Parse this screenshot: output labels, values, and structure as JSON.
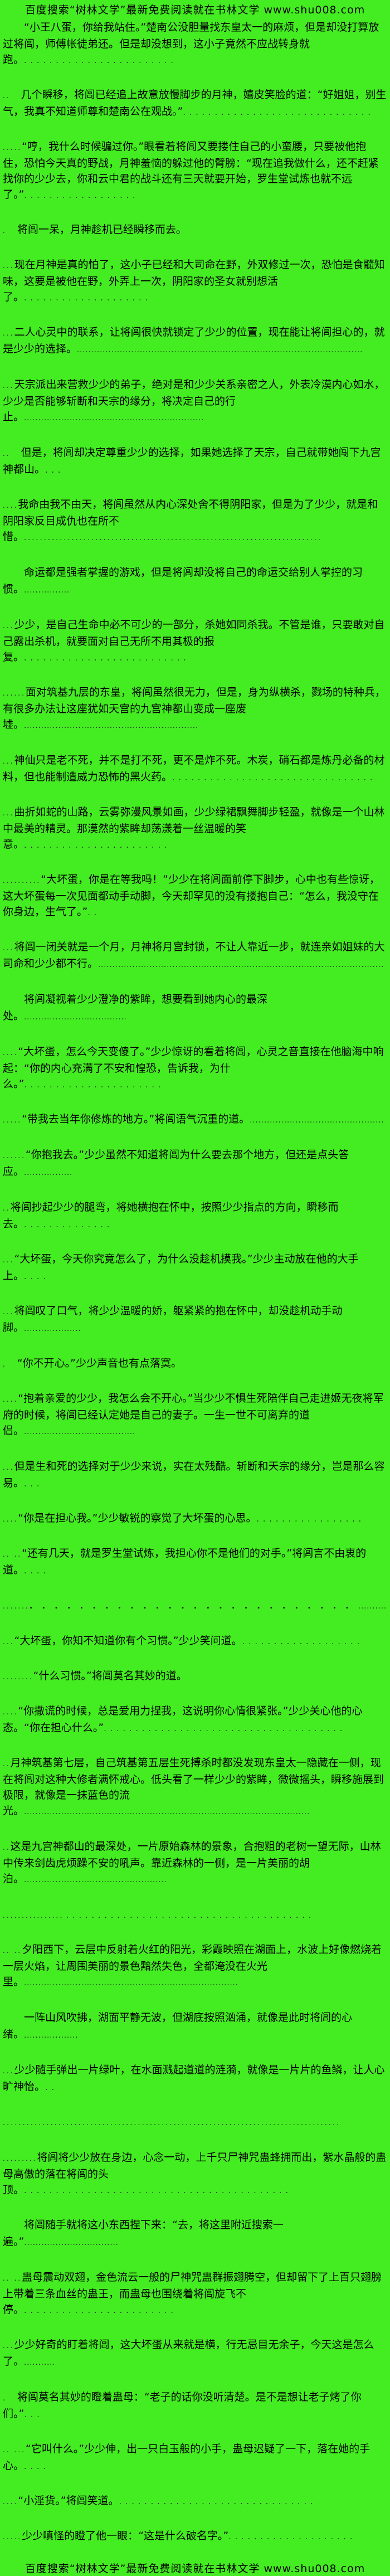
{
  "page": {
    "background_color": "#44ED21",
    "text_color": "#000000"
  },
  "banner": {
    "text": "百度搜索“树林文学”最新免费阅读就在书林文学 www.shu008.com",
    "site_name": "树林文学",
    "url": "www.shu008.com"
  },
  "paragraphs": [
    {
      "lead": "",
      "text": "　　“小王八蛋，你给我站住。”楚南公没胆量找东皇太一的麻烦，但是却没打算放过将闾，师傅帐徒弟还。但是却没想到，这小子竟然不应战转身就跑。",
      "trail_style": "sparse",
      "trail_n": 24
    },
    {
      "lead": "..",
      "text": "　几个瞬移，将闾已经追上故意放慢脚步的月神，嬉皮笑脸的道：“好姐姐，别生气，我真不知道师尊和楚南公在观战。”",
      "trail_style": "sparse",
      "trail_n": 30
    },
    {
      "lead": ".....",
      "text": "“哼，我什么时候骗过你。”眼看着将闾又要搂住自己的小蛮腰，只要被他抱住，恐怕今天真的野战，月神羞恼的躲过他的臂膀：“现在追我做什么，还不赶紧找你的少少去，你和云中君的战斗还有三天就要开始，罗生堂试炼也就不远了。”",
      "trail_style": "sparse",
      "trail_n": 18
    },
    {
      "lead": ".",
      "text": "　将闾一呆，月神趁机已经瞬移而去。",
      "trail_style": "sparse",
      "trail_n": 0
    },
    {
      "lead": "...",
      "text": "现在月神是真的怕了，这小子已经和大司命在野，外双修过一次，恐怕是食髓知味，这要是被他在野，外弄上一次，阴阳家的圣女就别想活了。",
      "trail_style": "sparse",
      "trail_n": 20
    },
    {
      "lead": "...",
      "text": "二人心灵中的联系，让将闾很快就锁定了少少的位置，现在能让将闾担心的，就是少少的选择。",
      "trail_style": "tight",
      "trail_n": 100
    },
    {
      "lead": "...",
      "text": "天宗派出来营救少少的弟子，绝对是和少少关系亲密之人，外表冷漠内心如水，少少是否能够斩断和天宗的缘分，将决定自己的行止。",
      "trail_style": "tight",
      "trail_n": 63
    },
    {
      "lead": "..",
      "text": "　但是，将闾却决定尊重少少的选择，如果她选择了天宗，自己就带她闯下九宫神都山。",
      "trail_style": "sparse",
      "trail_n": 3
    },
    {
      "lead": "....",
      "text": "我命由我不由天，将闾虽然从内心深处舍不得阴阳家，但是为了少少，就是和阴阳家反目成仇也在所不惜。",
      "trail_style": "mid",
      "trail_n": 75
    },
    {
      "lead": "",
      "text": "　　命运都是强者掌握的游戏，但是将闾却没将自己的命运交给别人掌控的习惯。",
      "trail_style": "tight",
      "trail_n": 16
    },
    {
      "lead": "...",
      "text": "少少，是自己生命中必不可少的一部分，杀她如同杀我。不管是谁，只要敢对自己露出杀机，就要面对自己无所不用其极的报复。",
      "trail_style": "sparse",
      "trail_n": 26
    },
    {
      "lead": "......",
      "text": "面对筑基九层的东皇，将闾虽然很无力，但是，身为纵横杀，戮场的特种兵，有很多办法让这座犹如天宫的九宫神都山变成一座废墟。",
      "trail_style": "tight",
      "trail_n": 61
    },
    {
      "lead": "...",
      "text": "神仙只是老不死，并不是打不死，更不是炸不死。木炭，硝石都是炼丹必备的材料，但也能制造威力恐怖的黑火药。",
      "trail_style": "sparse",
      "trail_n": 32
    },
    {
      "lead": "...",
      "text": "曲折如蛇的山路，云雾弥漫风景如画，少少绿裙飘舞脚步轻盈，就像是一个山林中最美的精灵。那漠然的紫眸却荡漾着一丝温暖的笑意。",
      "trail_style": "sparse",
      "trail_n": 23
    },
    {
      "lead": "..........",
      "text": "“大坏蛋，你是在等我吗！”少少在将闾面前停下脚步，心中也有些惊讶，这大坏蛋每一次见面都动手动脚，今天却罕见的没有搂抱自己：“怎么，我没守在你身边，生气了。”",
      "trail_style": "sparse",
      "trail_n": 2
    },
    {
      "lead": "...",
      "text": "将闾一闭关就是一个月，月神将月宫封锁，不让人靠近一步，就连亲如姐妹的大司命和少少都不行。",
      "trail_style": "tight",
      "trail_n": 100
    },
    {
      "lead": "",
      "text": "　　将闾凝视着少少澄净的紫眸，想要看到她内心的最深处。",
      "trail_style": "tight",
      "trail_n": 36
    },
    {
      "lead": "....",
      "text": "“大坏蛋，怎么今天变傻了。”少少惊讶的看着将闾，心灵之音直接在他脑海中响起：“你的内心充满了不安和惶恐，告诉我，为什么。”",
      "trail_style": "sparse",
      "trail_n": 22
    },
    {
      "lead": ".....",
      "text": "“带我去当年你修炼的地方。”将闾语气沉重的道。",
      "trail_style": "tight",
      "trail_n": 47
    },
    {
      "lead": "......",
      "text": "“你抱我去。”少少虽然不知道将闾为什么要去那个地方，但还是点头答应。",
      "trail_style": "tight",
      "trail_n": 17
    },
    {
      "lead": "..",
      "text": "将闾抄起少少的腿弯，将她横抱在怀中，按照少少指点的方向，瞬移而去。",
      "trail_style": "sparse",
      "trail_n": 14
    },
    {
      "lead": "...",
      "text": "“大坏蛋，今天你究竟怎么了，为什么没趁机摸我。”少少主动放在他的大手上。",
      "trail_style": "sparse",
      "trail_n": 4
    },
    {
      "lead": "...",
      "text": "将闾叹了口气，将少少温暖的娇，躯紧紧的抱在怀中，却没趁机动手动脚。",
      "trail_style": "tight",
      "trail_n": 20
    },
    {
      "lead": ".",
      "text": "　“你不开心。”少少声音也有点落寞。",
      "trail_style": "sparse",
      "trail_n": 0
    },
    {
      "lead": "....",
      "text": "“抱着亲爱的少少，我怎么会不开心。”当少少不惧生死陪伴自己走进姬无夜将军府的时候，将闾已经认定她是自己的妻子。一生一世不可离弃的道侣。",
      "trail_style": "tight",
      "trail_n": 39
    },
    {
      "lead": "...",
      "text": "但是生和死的选择对于少少来说，实在太残酷。斩断和天宗的缘分，岂是那么容易。",
      "trail_style": "sparse",
      "trail_n": 3
    },
    {
      "lead": "....",
      "text": "“你是在担心我。”少少敏锐的察觉了大坏蛋的心思。",
      "trail_style": "sparse",
      "trail_n": 17
    },
    {
      "lead": ".. ..",
      "text": "“还有几天，就是罗生堂试炼，我担心你不是他们的对手。”将闾言不由衷的道。",
      "trail_style": "sparse",
      "trail_n": 4
    },
    {
      "sep": true,
      "lead": ".......",
      "heavy_n": 26,
      "text": "",
      "trail_style": "tight",
      "trail_n": 40
    },
    {
      "lead": "...",
      "text": "“大坏蛋，你知不知道你有个习惯。”少少笑问道。",
      "trail_style": "sparse",
      "trail_n": 19
    },
    {
      "lead": "........",
      "text": "“什么习惯。”将闾莫名其妙的道。",
      "trail_style": "sparse",
      "trail_n": 0
    },
    {
      "lead": "....",
      "text": "“你撒谎的时候，总是爱用力捏我，这说明你心情很紧张。”少少关心他的心态。“你在担心什么。”",
      "trail_style": "sparse",
      "trail_n": 38
    },
    {
      "lead": "..",
      "text": "月神筑基第七层，自己筑基第五层生死搏杀时都没发现东皇太一隐藏在一侧，现在将闾对这种大修者满怀戒心。低头看了一样少少的紫眸，微微摇头，瞬移施展到极限，就像是一抹蓝色的流光。",
      "trail_style": "tight",
      "trail_n": 100
    },
    {
      "lead": "..",
      "text": "这是九宫神都山的最深处，一片原始森林的景象，合抱粗的老树一望无际，山林中传来剑齿虎烦躁不安的吼声。靠近森林的一侧，是一片美丽的胡泊。",
      "trail_style": "tight",
      "trail_n": 50
    },
    {
      "sep": true,
      "lead": "...............",
      "heavy_n": 0,
      "text": "",
      "trail_style": "sparse",
      "trail_n": 40
    },
    {
      "lead": ".. ..",
      "text": "夕阳西下，云层中反射着火红的阳光，彩霞映照在湖面上，水波上好像燃烧着一层火焰，让周围美丽的景色黯然失色，全都淹没在火光里。",
      "trail_style": "tight",
      "trail_n": 75
    },
    {
      "lead": "",
      "text": "　　一阵山风吹拂，湖面平静无波，但湖底按照汹涌，就像是此时将闾的心绪。",
      "trail_style": "tight",
      "trail_n": 19
    },
    {
      "lead": "...",
      "text": "少少随手弹出一片绿叶，在水面溅起道道的涟漪，就像是一片片的鱼鳞，让人心旷神怡。",
      "trail_style": "sparse",
      "trail_n": 2
    },
    {
      "sep": true,
      "lead": "",
      "heavy_n": 0,
      "text": "",
      "trail_style": "mid",
      "trail_n": 85
    },
    {
      "lead": ".........",
      "text": "将闾将少少放在身边，心念一动，上千只尸神咒蛊蜂拥而出，紫水晶般的蛊母高傲的落在将闾的头顶。",
      "trail_style": "sparse",
      "trail_n": 42
    },
    {
      "lead": "",
      "text": "　　将闾随手就将这小东西捏下来：“去，将这里附近搜索一遍。”",
      "trail_style": "tight",
      "trail_n": 33
    },
    {
      "lead": ".. ..",
      "text": "蛊母震动双翅，金色流云一般的尸神咒蛊群振翅腾空，但却留下了上百只翅膀上带着三条血丝的蛊王，而蛊母也围绕着将闾旋飞不停。",
      "trail_style": "sparse",
      "trail_n": 24
    },
    {
      "lead": "...",
      "text": "少少好奇的盯着将闾，这大坏蛋从来就是横，行无忌目无余子，今天这是怎么了。",
      "trail_style": "tight",
      "trail_n": 11
    },
    {
      "lead": ".",
      "text": "　将闾莫名其妙的瞪着蛊母：“老子的话你没听清楚。是不是想让老子烤了你们。”",
      "trail_style": "sparse",
      "trail_n": 3
    },
    {
      "lead": ".. ...",
      "text": "“它叫什么。”少少伸，出一只白玉般的小手，蛊母迟疑了一下，落在她的手心。",
      "trail_style": "sparse",
      "trail_n": 4
    },
    {
      "lead": "....",
      "text": "“小淫货。”将闾笑道。",
      "trail_style": "sparse",
      "trail_n": 31
    },
    {
      "lead": ".....",
      "text": "少少嗔怪的瞪了他一眼：“这是什么破名字。”",
      "trail_style": "sparse",
      "trail_n": 20
    }
  ]
}
